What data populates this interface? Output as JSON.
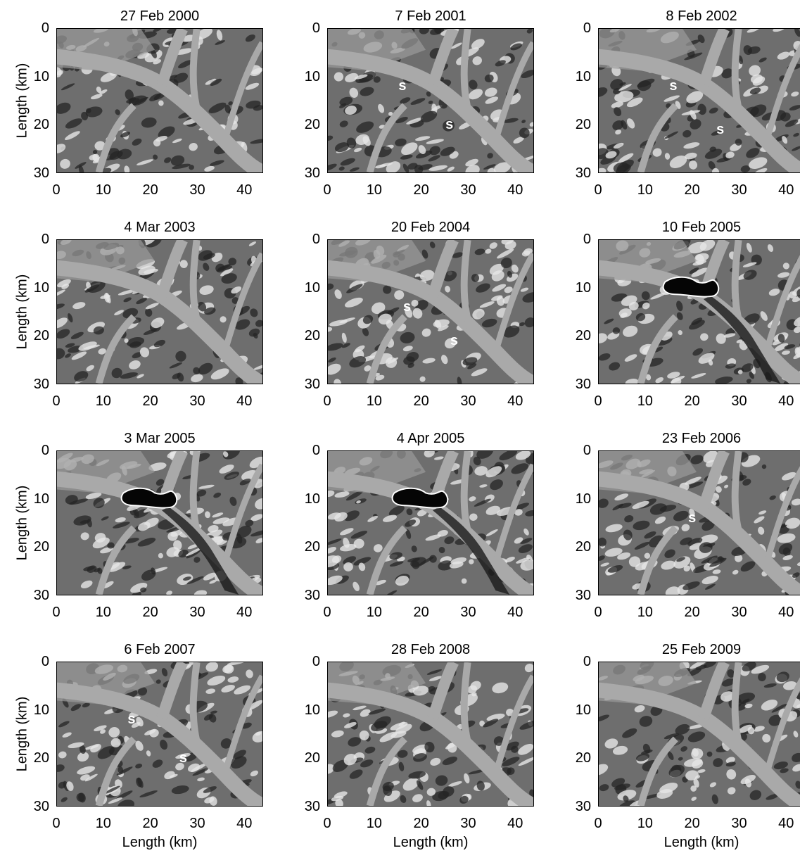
{
  "figure": {
    "y_axis_label": "Length (km)",
    "x_axis_label": "Length (km)",
    "x_ticks": [
      "0",
      "10",
      "20",
      "30",
      "40"
    ],
    "y_ticks": [
      "0",
      "10",
      "20",
      "30"
    ],
    "x_range_km": [
      0,
      44
    ],
    "y_range_km": [
      0,
      30
    ],
    "y_inverted": true,
    "marker_label": "s",
    "panels": [
      {
        "title": "27 Feb 2000",
        "s_markers": [],
        "dark_outline": false
      },
      {
        "title": "7 Feb 2001",
        "s_markers": [
          {
            "x": 16,
            "y": 12
          },
          {
            "x": 26,
            "y": 20
          }
        ],
        "dark_outline": false
      },
      {
        "title": "8 Feb 2002",
        "s_markers": [
          {
            "x": 16,
            "y": 12
          },
          {
            "x": 26,
            "y": 21
          }
        ],
        "dark_outline": false
      },
      {
        "title": "4 Mar 2003",
        "s_markers": [],
        "dark_outline": false
      },
      {
        "title": "20 Feb 2004",
        "s_markers": [
          {
            "x": 17,
            "y": 14
          },
          {
            "x": 27,
            "y": 21
          }
        ],
        "dark_outline": false
      },
      {
        "title": "10 Feb 2005",
        "s_markers": [],
        "dark_outline": true
      },
      {
        "title": "3 Mar 2005",
        "s_markers": [],
        "dark_outline": true
      },
      {
        "title": "4 Apr 2005",
        "s_markers": [],
        "dark_outline": true
      },
      {
        "title": "23 Feb 2006",
        "s_markers": [
          {
            "x": 20,
            "y": 14
          }
        ],
        "dark_outline": false
      },
      {
        "title": "6 Feb 2007",
        "s_markers": [
          {
            "x": 16,
            "y": 12
          },
          {
            "x": 27,
            "y": 20
          }
        ],
        "dark_outline": false
      },
      {
        "title": "28 Feb 2008",
        "s_markers": [],
        "dark_outline": false
      },
      {
        "title": "25 Feb 2009",
        "s_markers": [],
        "dark_outline": false
      }
    ],
    "colors": {
      "river": "#a9a9a9",
      "terrain_dark": "#262626",
      "terrain_light": "#e6e6e6",
      "jam": "#050505"
    }
  }
}
